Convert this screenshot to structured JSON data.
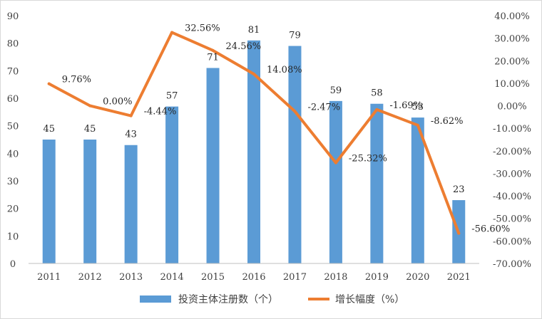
{
  "chart_data": {
    "type": "bar",
    "categories": [
      "2011",
      "2012",
      "2013",
      "2014",
      "2015",
      "2016",
      "2017",
      "2018",
      "2019",
      "2020",
      "2021"
    ],
    "series": [
      {
        "name": "投资主体注册数（个）",
        "type": "bar",
        "axis": "left",
        "color": "#5B9BD5",
        "values": [
          45,
          45,
          43,
          57,
          71,
          81,
          79,
          59,
          58,
          53,
          23
        ],
        "labels": [
          "45",
          "45",
          "43",
          "57",
          "71",
          "81",
          "79",
          "59",
          "58",
          "53",
          "23"
        ]
      },
      {
        "name": "增长幅度（%）",
        "type": "line",
        "axis": "right",
        "color": "#ED7D31",
        "values": [
          9.76,
          0.0,
          -4.44,
          32.56,
          24.56,
          14.08,
          -2.47,
          -25.32,
          -1.69,
          -8.62,
          -56.6
        ],
        "labels": [
          "9.76%",
          "0.00%",
          "-4.44%",
          "32.56%",
          "24.56%",
          "14.08%",
          "-2.47%",
          "-25.32%",
          "-1.69%",
          "-8.62%",
          "-56.60%"
        ]
      }
    ],
    "y_left": {
      "ylim": [
        0,
        90
      ],
      "ticks": [
        "0",
        "10",
        "20",
        "30",
        "40",
        "50",
        "60",
        "70",
        "80",
        "90"
      ]
    },
    "y_right": {
      "ylim": [
        -70,
        40
      ],
      "ticks": [
        "-70.00%",
        "-60.00%",
        "-50.00%",
        "-40.00%",
        "-30.00%",
        "-20.00%",
        "-10.00%",
        "0.00%",
        "10.00%",
        "20.00%",
        "30.00%",
        "40.00%"
      ]
    },
    "grid": false,
    "legend_position": "bottom"
  }
}
